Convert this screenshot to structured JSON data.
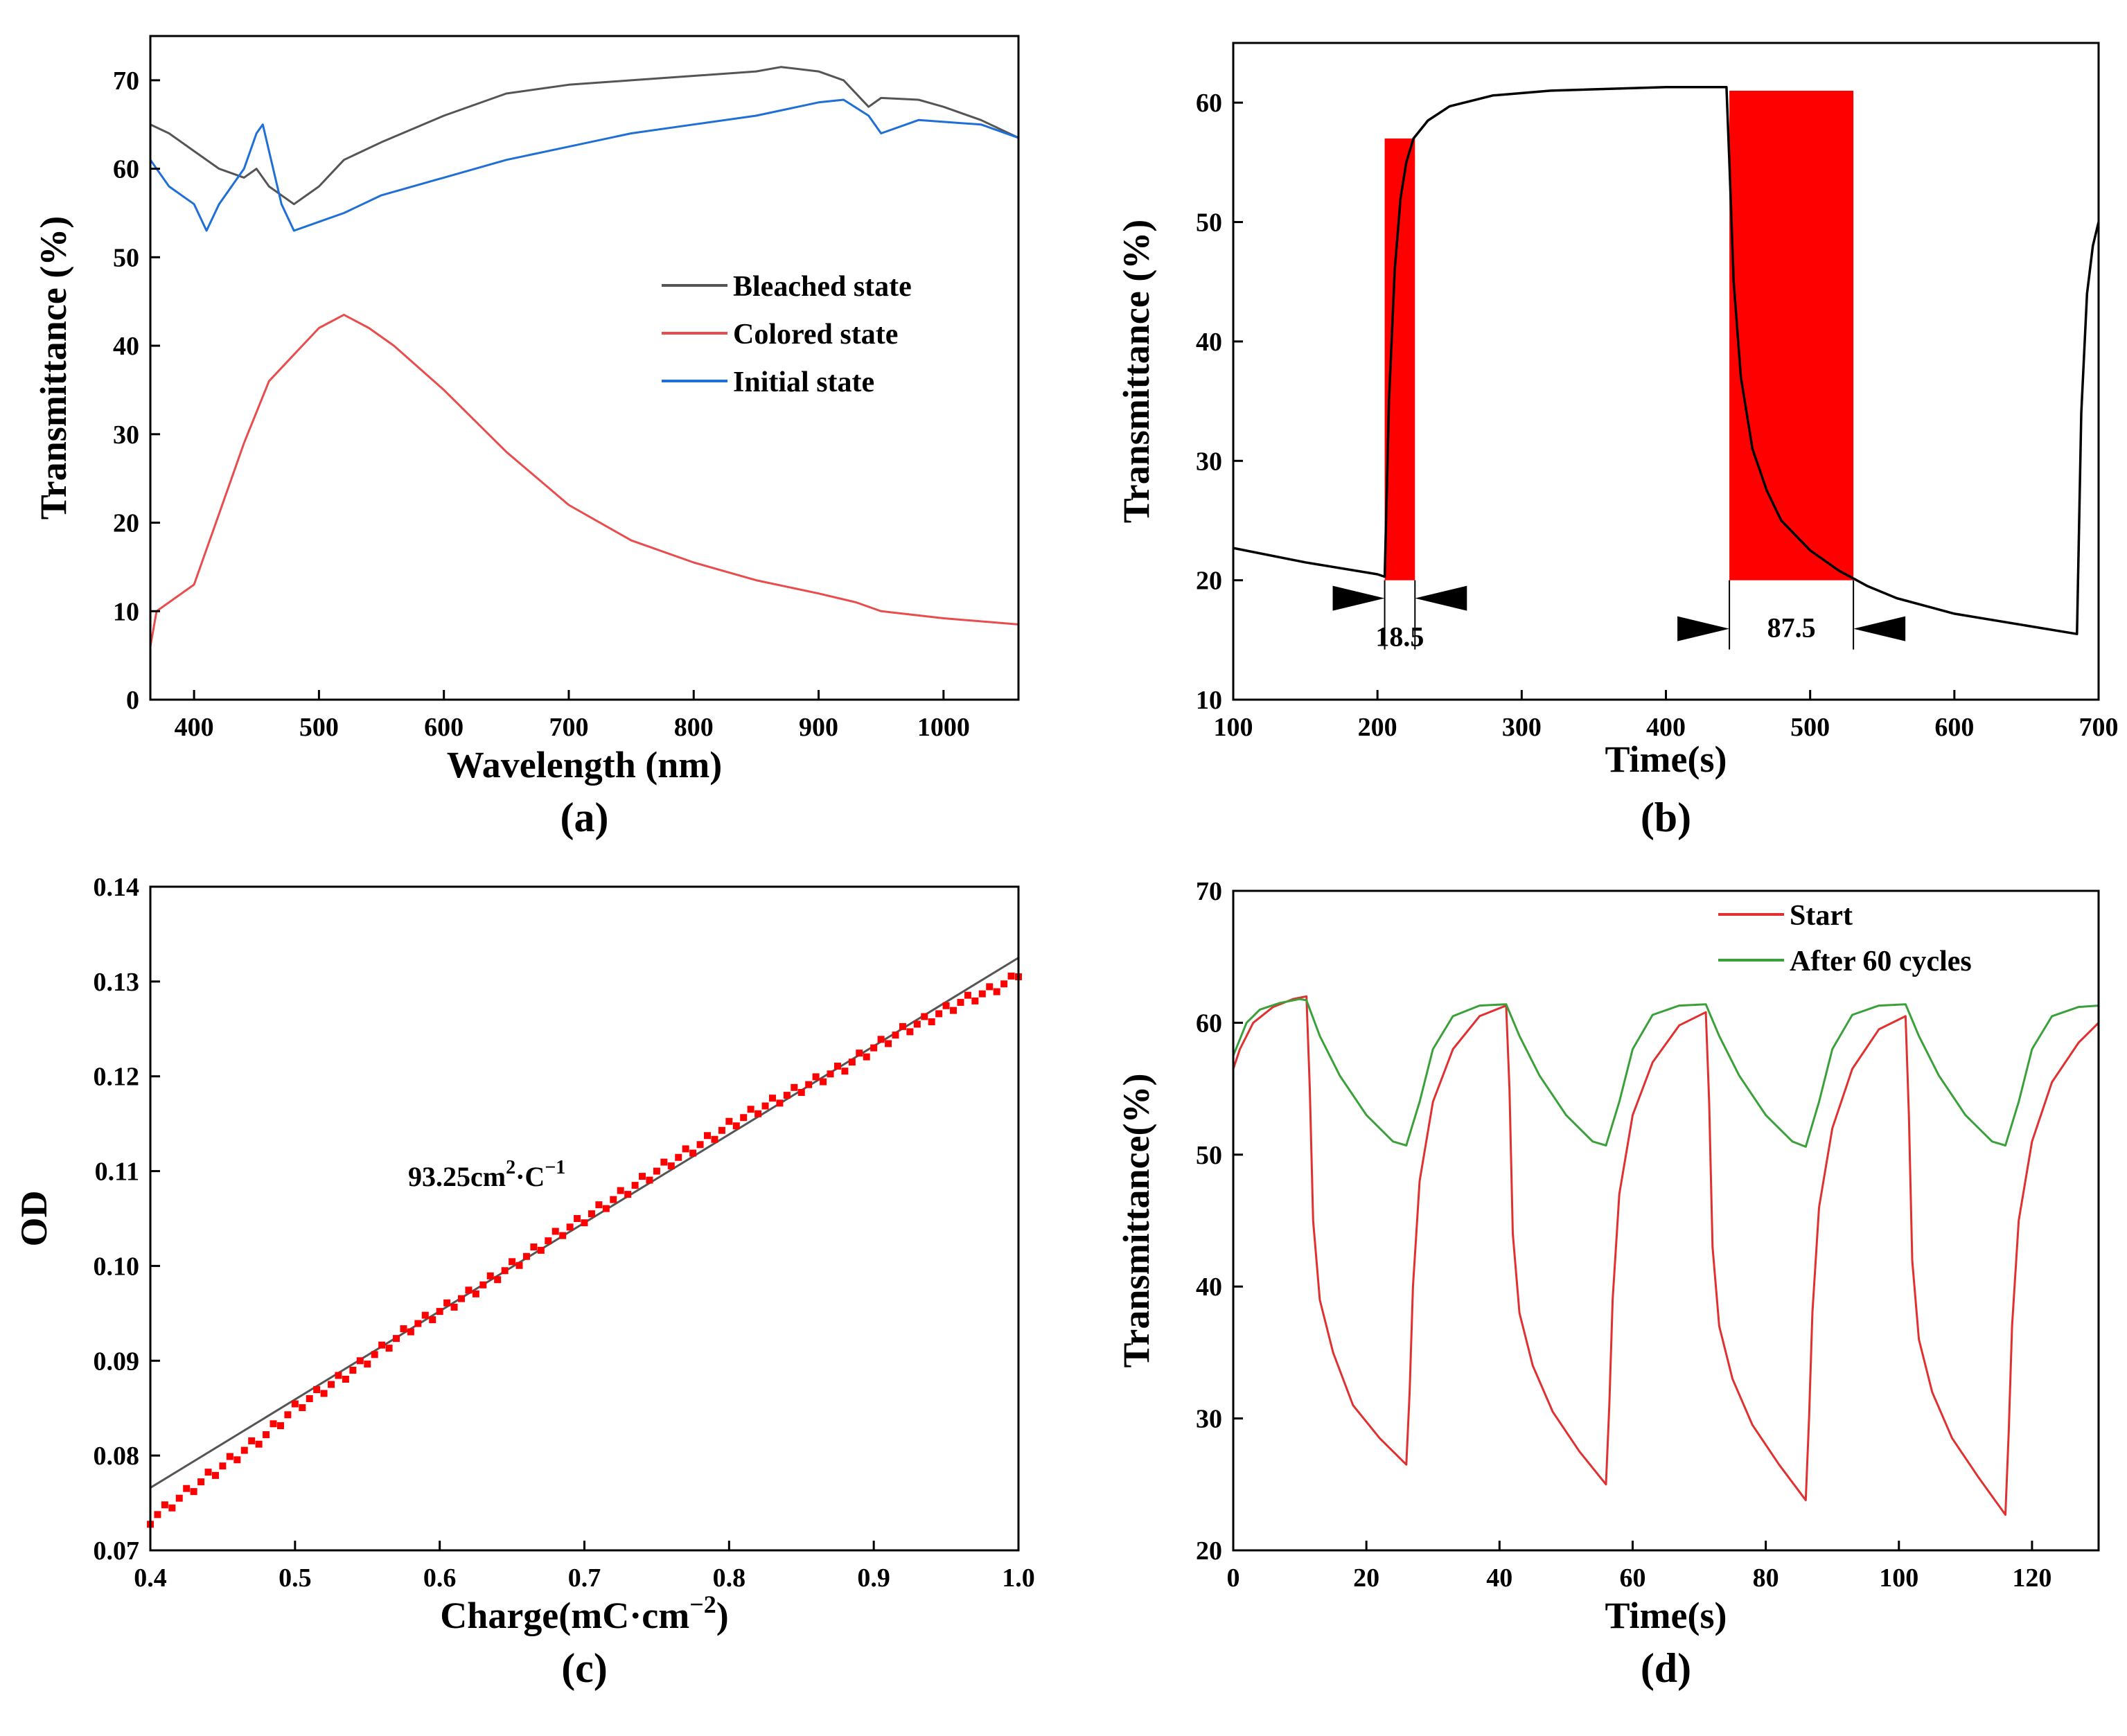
{
  "chart_data": [
    {
      "id": "a",
      "type": "line",
      "panel_label": "(a)",
      "xlabel": "Wavelength (nm)",
      "ylabel": "Transmittance (%)",
      "xlim": [
        365,
        1060
      ],
      "ylim": [
        0,
        75
      ],
      "xticks": [
        400,
        500,
        600,
        700,
        800,
        900,
        1000
      ],
      "yticks": [
        0,
        10,
        20,
        30,
        40,
        50,
        60,
        70
      ],
      "legend_position": "center-right",
      "series": [
        {
          "name": "Bleached state",
          "color": "#555555",
          "x": [
            365,
            380,
            400,
            420,
            440,
            450,
            460,
            480,
            500,
            520,
            550,
            600,
            650,
            700,
            750,
            800,
            850,
            870,
            900,
            920,
            940,
            950,
            980,
            1000,
            1030,
            1060
          ],
          "y": [
            65,
            64,
            62,
            60,
            59,
            60,
            58,
            56,
            58,
            61,
            63,
            66,
            68.5,
            69.5,
            70,
            70.5,
            71,
            71.5,
            71,
            70,
            67,
            68,
            67.8,
            67,
            65.5,
            63.5
          ]
        },
        {
          "name": "Colored state",
          "color": "#e84c4c",
          "x": [
            365,
            370,
            380,
            400,
            410,
            420,
            440,
            460,
            480,
            500,
            520,
            540,
            560,
            600,
            650,
            700,
            750,
            800,
            850,
            900,
            930,
            950,
            1000,
            1060
          ],
          "y": [
            6,
            10,
            11,
            13,
            17,
            21,
            29,
            36,
            39,
            42,
            43.5,
            42,
            40,
            35,
            28,
            22,
            18,
            15.5,
            13.5,
            12,
            11,
            10,
            9.2,
            8.5
          ]
        },
        {
          "name": "Initial state",
          "color": "#1f6fd6",
          "x": [
            365,
            380,
            400,
            410,
            420,
            440,
            450,
            455,
            460,
            470,
            480,
            500,
            520,
            550,
            600,
            650,
            700,
            750,
            800,
            850,
            900,
            920,
            940,
            950,
            980,
            1000,
            1030,
            1060
          ],
          "y": [
            61,
            58,
            56,
            53,
            56,
            60,
            64,
            65,
            62,
            56,
            53,
            54,
            55,
            57,
            59,
            61,
            62.5,
            64,
            65,
            66,
            67.5,
            67.8,
            66,
            64,
            65.5,
            65.3,
            65,
            63.5
          ]
        }
      ]
    },
    {
      "id": "b",
      "type": "line",
      "panel_label": "(b)",
      "xlabel": "Time(s)",
      "ylabel": "Transmittance (%)",
      "xlim": [
        100,
        700
      ],
      "ylim": [
        10,
        65
      ],
      "xticks": [
        100,
        200,
        300,
        400,
        500,
        600,
        700
      ],
      "yticks": [
        10,
        20,
        30,
        40,
        50,
        60
      ],
      "series": [
        {
          "name": "Transmittance",
          "color": "#000000",
          "x": [
            100,
            150,
            200,
            205,
            208,
            212,
            216,
            220,
            225,
            235,
            250,
            280,
            320,
            400,
            442,
            444,
            447,
            452,
            460,
            470,
            480,
            500,
            520,
            540,
            560,
            600,
            650,
            685,
            688,
            692,
            696,
            700
          ],
          "y": [
            22.7,
            21.5,
            20.5,
            20.3,
            35,
            46,
            52,
            55,
            57,
            58.5,
            59.7,
            60.6,
            61,
            61.3,
            61.3,
            55,
            45,
            37,
            31,
            27.5,
            25,
            22.5,
            20.8,
            19.5,
            18.5,
            17.2,
            16.2,
            15.5,
            34,
            44,
            48,
            50
          ]
        }
      ],
      "highlights": [
        {
          "x0": 205,
          "x1": 226,
          "y0": 20,
          "y1": 57,
          "color": "#ff0000",
          "label": "18.5"
        },
        {
          "x0": 444,
          "x1": 530,
          "y0": 20,
          "y1": 61,
          "color": "#ff0000",
          "label": "87.5"
        }
      ]
    },
    {
      "id": "c",
      "type": "scatter",
      "panel_label": "(c)",
      "xlabel": "Charge(mC·cm",
      "xlabel_sup": "−2",
      "xlabel_tail": ")",
      "ylabel": "OD",
      "xlim": [
        0.4,
        1.0
      ],
      "ylim": [
        0.07,
        0.14
      ],
      "xticks": [
        "0.4",
        "0.5",
        "0.6",
        "0.7",
        "0.8",
        "0.9",
        "1.0"
      ],
      "yticks": [
        "0.07",
        "0.08",
        "0.09",
        "0.10",
        "0.11",
        "0.12",
        "0.13",
        "0.14"
      ],
      "annotation": {
        "text": "93.25cm",
        "sup1": "2",
        "mid": "·C",
        "sup2": "−1"
      },
      "fit_line": {
        "color": "#555555",
        "x": [
          0.4,
          1.0
        ],
        "y": [
          0.0766,
          0.1325
        ]
      },
      "points_color": "#ff0000",
      "points": {
        "x": [
          0.4,
          0.42,
          0.44,
          0.46,
          0.48,
          0.5,
          0.52,
          0.54,
          0.56,
          0.58,
          0.6,
          0.62,
          0.64,
          0.66,
          0.68,
          0.7,
          0.72,
          0.74,
          0.76,
          0.78,
          0.8,
          0.82,
          0.84,
          0.86,
          0.88,
          0.9,
          0.92,
          0.94,
          0.96,
          0.98,
          1.0
        ],
        "y": [
          0.0732,
          0.0755,
          0.0778,
          0.08,
          0.0822,
          0.085,
          0.087,
          0.089,
          0.0912,
          0.0935,
          0.0952,
          0.097,
          0.099,
          0.101,
          0.1032,
          0.105,
          0.107,
          0.109,
          0.111,
          0.1128,
          0.1148,
          0.1165,
          0.118,
          0.1195,
          0.121,
          0.123,
          0.1248,
          0.1262,
          0.1278,
          0.129,
          0.1305
        ]
      }
    },
    {
      "id": "d",
      "type": "line",
      "panel_label": "(d)",
      "xlabel": "Time(s)",
      "ylabel": "Transmittance(%)",
      "xlim": [
        0,
        130
      ],
      "ylim": [
        20,
        70
      ],
      "xticks": [
        0,
        20,
        40,
        60,
        80,
        100,
        120
      ],
      "yticks": [
        20,
        30,
        40,
        50,
        60,
        70
      ],
      "legend_position": "top-right",
      "series": [
        {
          "name": "Start",
          "color": "#e03030",
          "x": [
            0,
            1,
            3,
            6,
            9,
            11,
            11.5,
            12,
            13,
            15,
            18,
            22,
            26,
            26.5,
            27,
            28,
            30,
            33,
            37,
            41,
            41.5,
            42,
            43,
            45,
            48,
            52,
            56,
            56.5,
            57,
            58,
            60,
            63,
            67,
            71,
            71.5,
            72,
            73,
            75,
            78,
            82,
            86,
            86.5,
            87,
            88,
            90,
            93,
            97,
            101,
            101.5,
            102,
            103,
            105,
            108,
            112,
            116,
            116.5,
            117,
            118,
            120,
            123,
            127,
            130
          ],
          "y": [
            56.5,
            58,
            60,
            61.2,
            61.8,
            62,
            55,
            45,
            39,
            35,
            31,
            28.5,
            26.5,
            32,
            40,
            48,
            54,
            58,
            60.5,
            61.3,
            55,
            44,
            38,
            34,
            30.5,
            27.5,
            25,
            31,
            39,
            47,
            53,
            57,
            59.8,
            60.8,
            54,
            43,
            37,
            33,
            29.5,
            26.5,
            23.8,
            30,
            38,
            46,
            52,
            56.5,
            59.5,
            60.5,
            53,
            42,
            36,
            32,
            28.5,
            25.5,
            22.7,
            29,
            37,
            45,
            51,
            55.5,
            58.5,
            60
          ]
        },
        {
          "name": "After 60 cycles",
          "color": "#3aa03a",
          "x": [
            0,
            2,
            4,
            7,
            10,
            11,
            13,
            16,
            20,
            24,
            26,
            28,
            30,
            33,
            37,
            41,
            43,
            46,
            50,
            54,
            56,
            58,
            60,
            63,
            67,
            71,
            73,
            76,
            80,
            84,
            86,
            88,
            90,
            93,
            97,
            101,
            103,
            106,
            110,
            114,
            116,
            118,
            120,
            123,
            127,
            130
          ],
          "y": [
            57.5,
            60,
            61,
            61.5,
            61.8,
            61.7,
            59,
            56,
            53,
            51,
            50.7,
            54,
            58,
            60.5,
            61.3,
            61.4,
            59,
            56,
            53,
            51,
            50.7,
            54,
            58,
            60.6,
            61.3,
            61.4,
            59,
            56,
            53,
            51,
            50.6,
            54,
            58,
            60.6,
            61.3,
            61.4,
            59,
            56,
            53,
            51,
            50.7,
            54,
            58,
            60.5,
            61.2,
            61.3
          ]
        }
      ]
    }
  ]
}
